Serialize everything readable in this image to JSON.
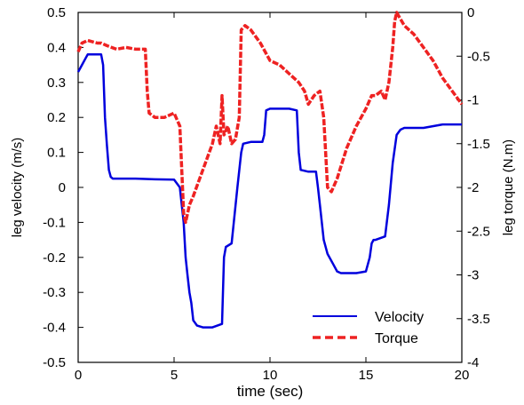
{
  "chart_data": {
    "type": "line",
    "xlabel": "time (sec)",
    "ylabel_left": "leg velocity (m/s)",
    "ylabel_right": "leg torque  (N.m)",
    "xlim": [
      0,
      20
    ],
    "ylim_left": [
      -0.5,
      0.5
    ],
    "ylim_right": [
      -4,
      0
    ],
    "xticks": [
      0,
      5,
      10,
      15,
      20
    ],
    "yticks_left": [
      -0.5,
      -0.4,
      -0.3,
      -0.2,
      -0.1,
      0,
      0.1,
      0.2,
      0.3,
      0.4,
      0.5
    ],
    "yticks_right": [
      -4,
      -3.5,
      -3,
      -2.5,
      -2,
      -1.5,
      -1,
      -0.5,
      0
    ],
    "grid": false,
    "legend_position": "bottom-right",
    "series": [
      {
        "name": "Velocity",
        "axis": "left",
        "color": "#0000dd",
        "style": "solid",
        "x": [
          0,
          0.1,
          0.2,
          0.4,
          0.5,
          1.2,
          1.3,
          1.4,
          1.5,
          1.6,
          1.7,
          1.8,
          2.0,
          3.0,
          4.0,
          5.0,
          5.3,
          5.5,
          5.6,
          5.7,
          5.8,
          5.9,
          6.0,
          6.2,
          6.5,
          7.0,
          7.5,
          7.6,
          7.7,
          8.0,
          8.3,
          8.5,
          8.6,
          9.0,
          9.6,
          9.7,
          9.8,
          10.0,
          11.0,
          11.4,
          11.5,
          11.6,
          12.0,
          12.4,
          12.5,
          12.6,
          12.8,
          13.0,
          13.3,
          13.5,
          13.7,
          14.0,
          14.5,
          15.0,
          15.2,
          15.3,
          15.4,
          15.5,
          16.0,
          16.2,
          16.4,
          16.6,
          16.8,
          17.0,
          18.0,
          19.0,
          19.5,
          20.0
        ],
        "values": [
          0.33,
          0.34,
          0.35,
          0.37,
          0.38,
          0.38,
          0.35,
          0.2,
          0.12,
          0.05,
          0.03,
          0.025,
          0.025,
          0.025,
          0.023,
          0.022,
          0.0,
          -0.1,
          -0.2,
          -0.25,
          -0.3,
          -0.33,
          -0.38,
          -0.395,
          -0.4,
          -0.4,
          -0.39,
          -0.2,
          -0.17,
          -0.16,
          0.0,
          0.1,
          0.125,
          0.13,
          0.13,
          0.15,
          0.22,
          0.225,
          0.225,
          0.22,
          0.1,
          0.05,
          0.045,
          0.045,
          0.0,
          -0.05,
          -0.15,
          -0.19,
          -0.22,
          -0.24,
          -0.245,
          -0.245,
          -0.245,
          -0.24,
          -0.2,
          -0.16,
          -0.15,
          -0.15,
          -0.14,
          -0.05,
          0.07,
          0.15,
          0.165,
          0.17,
          0.17,
          0.18,
          0.18,
          0.18
        ]
      },
      {
        "name": "Torque",
        "axis": "right",
        "color": "#ee2222",
        "style": "dashed",
        "x": [
          0,
          0.2,
          0.5,
          1.0,
          1.2,
          1.5,
          2.0,
          2.5,
          3.0,
          3.5,
          3.6,
          3.7,
          4.0,
          4.5,
          5.0,
          5.3,
          5.5,
          5.6,
          5.8,
          6.0,
          6.5,
          7.0,
          7.2,
          7.4,
          7.5,
          7.6,
          7.8,
          8.0,
          8.2,
          8.4,
          8.5,
          8.7,
          9.0,
          9.5,
          10.0,
          10.5,
          11.0,
          11.5,
          11.8,
          12.0,
          12.3,
          12.6,
          12.8,
          13.0,
          13.2,
          13.5,
          14.0,
          14.5,
          15.0,
          15.3,
          15.5,
          15.8,
          16.0,
          16.2,
          16.4,
          16.5,
          16.6,
          17.0,
          17.5,
          18.0,
          18.5,
          19.0,
          19.5,
          20.0
        ],
        "values": [
          -0.45,
          -0.35,
          -0.32,
          -0.35,
          -0.35,
          -0.38,
          -0.42,
          -0.4,
          -0.42,
          -0.42,
          -0.9,
          -1.15,
          -1.2,
          -1.2,
          -1.15,
          -1.3,
          -2.3,
          -2.4,
          -2.2,
          -2.1,
          -1.8,
          -1.5,
          -1.3,
          -1.5,
          -0.95,
          -1.4,
          -1.3,
          -1.5,
          -1.45,
          -1.2,
          -0.2,
          -0.15,
          -0.2,
          -0.35,
          -0.55,
          -0.6,
          -0.7,
          -0.8,
          -0.9,
          -1.05,
          -0.95,
          -0.9,
          -1.2,
          -2.0,
          -2.05,
          -1.9,
          -1.55,
          -1.3,
          -1.1,
          -0.95,
          -0.95,
          -0.9,
          -1.0,
          -0.8,
          -0.4,
          -0.1,
          0.0,
          -0.15,
          -0.25,
          -0.4,
          -0.55,
          -0.75,
          -0.9,
          -1.05
        ]
      }
    ]
  }
}
